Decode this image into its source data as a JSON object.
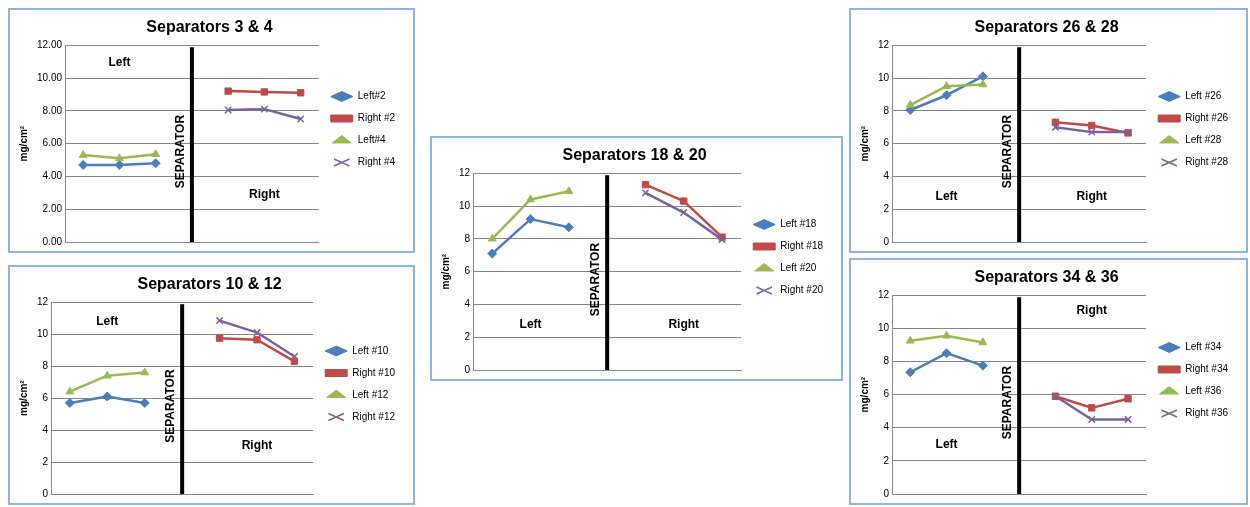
{
  "chart_data": [
    {
      "type": "line",
      "title": "Separators 3 & 4",
      "ylabel": "mg/cm²",
      "categories": [
        null,
        null,
        null,
        null,
        null,
        null,
        null
      ],
      "ylim": [
        0,
        12
      ],
      "yticks": [
        {
          "value": 0,
          "label": "0.00"
        },
        {
          "value": 2,
          "label": "2.00"
        },
        {
          "value": 4,
          "label": "4.00"
        },
        {
          "value": 6,
          "label": "6.00"
        },
        {
          "value": 8,
          "label": "8.00"
        },
        {
          "value": 10,
          "label": "10.00"
        },
        {
          "value": 12,
          "label": "12.00"
        }
      ],
      "grid": "y",
      "legend": "right",
      "tick_labels": "y",
      "annotations": [
        "Left",
        "Right",
        "SEPARATOR"
      ],
      "series": [
        {
          "name": "Left#2",
          "color": "#4a7ebb",
          "marker": "diamond",
          "values": [
            4.7,
            4.7,
            4.8,
            null,
            null,
            null,
            null
          ]
        },
        {
          "name": "Right #2",
          "color": "#be4b48",
          "marker": "square",
          "values": [
            null,
            null,
            null,
            null,
            9.2,
            9.15,
            9.1
          ]
        },
        {
          "name": "Left#4",
          "color": "#98b954",
          "marker": "triangle",
          "values": [
            5.3,
            5.1,
            5.35,
            null,
            null,
            null,
            null
          ]
        },
        {
          "name": "Right #4",
          "color": "#7d60a0",
          "marker": "cross",
          "values": [
            null,
            null,
            null,
            null,
            8.05,
            8.1,
            7.5
          ]
        }
      ]
    },
    {
      "type": "line",
      "title": "Separators 10 & 12",
      "ylabel": "mg/cm²",
      "categories": [
        null,
        null,
        null,
        null,
        null,
        null,
        null
      ],
      "ylim": [
        0,
        12
      ],
      "yticks": [
        0,
        2,
        4,
        6,
        8,
        10,
        12
      ],
      "grid": "y",
      "legend": "right",
      "tick_labels": "y",
      "annotations": [
        "Left",
        "Right",
        "SEPARATOR"
      ],
      "series": [
        {
          "name": "Left #10",
          "color": "#4a7ebb",
          "marker": "diamond",
          "values": [
            5.7,
            6.1,
            5.7,
            null,
            null,
            null,
            null
          ]
        },
        {
          "name": "Right #10",
          "color": "#be4b48",
          "marker": "square",
          "values": [
            null,
            null,
            null,
            null,
            9.75,
            9.65,
            8.3
          ]
        },
        {
          "name": "Left #12",
          "color": "#98b954",
          "marker": "triangle",
          "values": [
            6.4,
            7.4,
            7.6,
            null,
            null,
            null,
            null
          ]
        },
        {
          "name": "Right #12",
          "color": "#7d60a0",
          "marker": "cross",
          "values": [
            null,
            null,
            null,
            null,
            10.85,
            10.1,
            8.6
          ]
        }
      ]
    },
    {
      "type": "line",
      "title": "Separators 18 & 20",
      "ylabel": "mg/cm²",
      "categories": [
        null,
        null,
        null,
        null,
        null,
        null,
        null
      ],
      "ylim": [
        0,
        12
      ],
      "yticks": [
        0,
        2,
        4,
        6,
        8,
        10,
        12
      ],
      "grid": "y",
      "legend": "right",
      "tick_labels": "y",
      "annotations": [
        "Left",
        "Right",
        "SEPARATOR"
      ],
      "series": [
        {
          "name": "Left #18",
          "color": "#4a7ebb",
          "marker": "diamond",
          "values": [
            7.1,
            9.2,
            8.7,
            null,
            null,
            null,
            null
          ]
        },
        {
          "name": "Right #18",
          "color": "#be4b48",
          "marker": "square",
          "values": [
            null,
            null,
            null,
            null,
            11.3,
            10.3,
            8.1
          ]
        },
        {
          "name": "Left #20",
          "color": "#98b954",
          "marker": "triangle",
          "values": [
            8.0,
            10.4,
            10.9,
            null,
            null,
            null,
            null
          ]
        },
        {
          "name": "Right #20",
          "color": "#7d60a0",
          "marker": "cross",
          "values": [
            null,
            null,
            null,
            null,
            10.8,
            9.6,
            7.95
          ]
        }
      ]
    },
    {
      "type": "line",
      "title": "Separators 26 & 28",
      "ylabel": "mg/cm²",
      "categories": [
        null,
        null,
        null,
        null,
        null,
        null,
        null
      ],
      "ylim": [
        0,
        12
      ],
      "yticks": [
        0,
        2,
        4,
        6,
        8,
        10,
        12
      ],
      "grid": "y",
      "legend": "right",
      "tick_labels": "y",
      "annotations": [
        "Left",
        "Right",
        "SEPARATOR"
      ],
      "series": [
        {
          "name": "Left #26",
          "color": "#4a7ebb",
          "marker": "diamond",
          "values": [
            8.05,
            8.95,
            10.1,
            null,
            null,
            null,
            null
          ]
        },
        {
          "name": "Right #26",
          "color": "#be4b48",
          "marker": "square",
          "values": [
            null,
            null,
            null,
            null,
            7.3,
            7.1,
            6.65
          ]
        },
        {
          "name": "Left #28",
          "color": "#98b954",
          "marker": "triangle",
          "values": [
            8.35,
            9.5,
            9.6,
            null,
            null,
            null,
            null
          ]
        },
        {
          "name": "Right #28",
          "color": "#7d60a0",
          "marker": "cross",
          "values": [
            null,
            null,
            null,
            null,
            7.0,
            6.7,
            6.7
          ]
        }
      ]
    },
    {
      "type": "line",
      "title": "Separators 34 & 36",
      "ylabel": "mg/cm²",
      "categories": [
        null,
        null,
        null,
        null,
        null,
        null,
        null
      ],
      "ylim": [
        0,
        12
      ],
      "yticks": [
        0,
        2,
        4,
        6,
        8,
        10,
        12
      ],
      "grid": "y",
      "legend": "right",
      "tick_labels": "y",
      "annotations": [
        "Left",
        "Right",
        "SEPARATOR"
      ],
      "series": [
        {
          "name": "Left #34",
          "color": "#4a7ebb",
          "marker": "diamond",
          "values": [
            7.35,
            8.5,
            7.75,
            null,
            null,
            null,
            null
          ]
        },
        {
          "name": "Right #34",
          "color": "#be4b48",
          "marker": "square",
          "values": [
            null,
            null,
            null,
            null,
            5.9,
            5.2,
            5.75
          ]
        },
        {
          "name": "Left #36",
          "color": "#98b954",
          "marker": "triangle",
          "values": [
            9.25,
            9.55,
            9.15,
            null,
            null,
            null,
            null
          ]
        },
        {
          "name": "Right #36",
          "color": "#7d60a0",
          "marker": "cross",
          "values": [
            null,
            null,
            null,
            null,
            5.9,
            4.5,
            4.5
          ]
        }
      ]
    }
  ]
}
